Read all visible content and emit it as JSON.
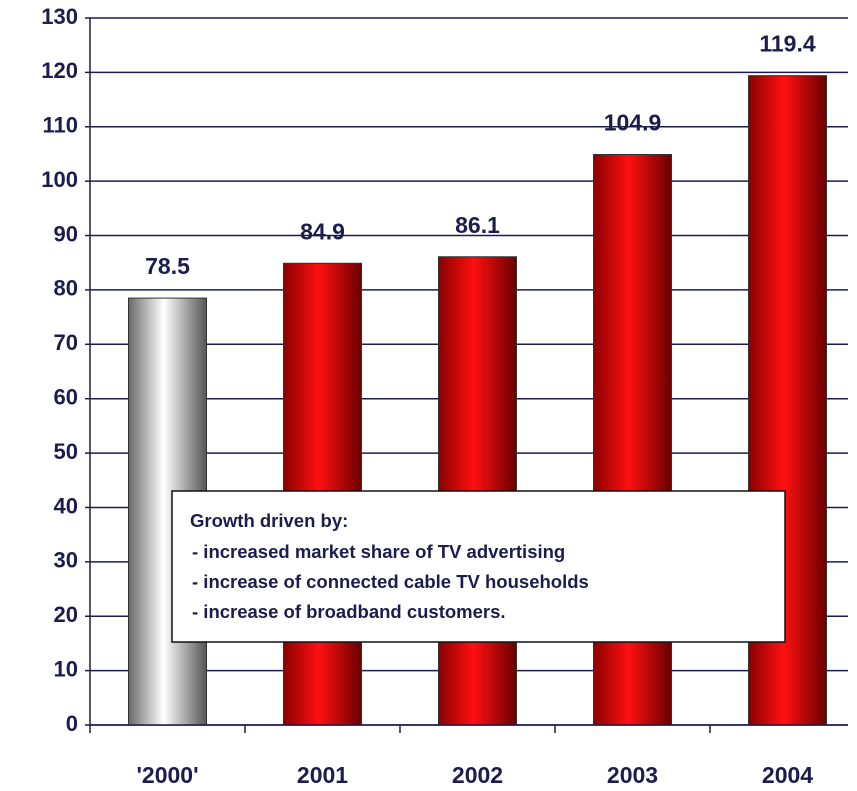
{
  "chart_data": {
    "type": "bar",
    "categories": [
      "'2000'",
      "2001",
      "2002",
      "2003",
      "2004"
    ],
    "values": [
      78.5,
      84.9,
      86.1,
      104.9,
      119.4
    ],
    "colors": [
      "#b8b8b8",
      "#e00000",
      "#e00000",
      "#e00000",
      "#e00000"
    ],
    "ylim": [
      0,
      130
    ],
    "yticks": [
      0,
      10,
      20,
      30,
      40,
      50,
      60,
      70,
      80,
      90,
      100,
      110,
      120,
      130
    ],
    "grid": true,
    "annotation": {
      "title": "Growth driven by:",
      "items": [
        "- increased market share of TV advertising",
        "- increase of connected cable TV households",
        "- increase of broadband customers."
      ]
    }
  }
}
